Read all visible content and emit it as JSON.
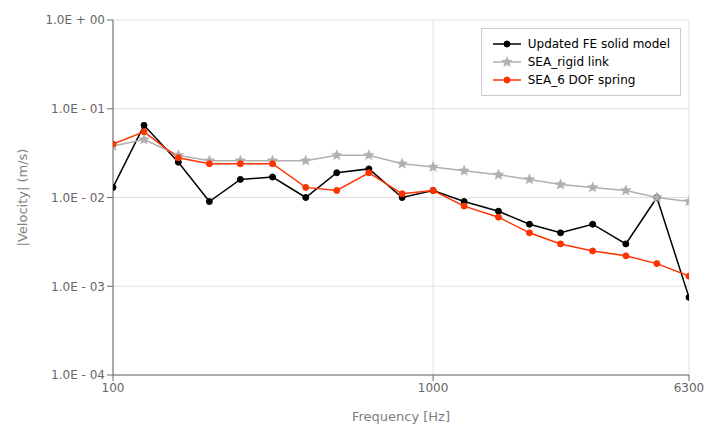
{
  "chart_data": {
    "type": "line",
    "xlabel": "Frequency [Hz]",
    "ylabel": "|Velocity| (m/s)",
    "log": true,
    "grid": true,
    "legend": "upper right",
    "xlim": [
      100,
      6300
    ],
    "ylim": [
      0.0001,
      1
    ],
    "xticks": [
      100,
      1000,
      6300
    ],
    "yticks": [
      {
        "value": 0.0001,
        "label": "1.0E - 04"
      },
      {
        "value": 0.001,
        "label": "1.0E - 03"
      },
      {
        "value": 0.01,
        "label": "1.0E - 02"
      },
      {
        "value": 0.1,
        "label": "1.0E - 01"
      },
      {
        "value": 1,
        "label": "1.0E + 00"
      }
    ],
    "x": [
      100,
      125,
      160,
      200,
      250,
      315,
      400,
      500,
      630,
      800,
      1000,
      1250,
      1600,
      2000,
      2500,
      3150,
      4000,
      5000,
      6300
    ],
    "series": [
      {
        "name": "Updated FE solid model",
        "color": "#000000",
        "marker": "circle",
        "values": [
          0.013,
          0.065,
          0.025,
          0.009,
          0.016,
          0.017,
          0.01,
          0.019,
          0.021,
          0.01,
          0.012,
          0.009,
          0.007,
          0.005,
          0.004,
          0.005,
          0.003,
          0.01,
          0.00075
        ]
      },
      {
        "name": "SEA_rigid link",
        "color": "#b0b0b0",
        "marker": "star",
        "values": [
          0.038,
          0.045,
          0.03,
          0.026,
          0.026,
          0.026,
          0.026,
          0.03,
          0.03,
          0.024,
          0.022,
          0.02,
          0.018,
          0.016,
          0.014,
          0.013,
          0.012,
          0.01,
          0.009
        ]
      },
      {
        "name": "SEA_6 DOF spring",
        "color": "#ff3300",
        "marker": "circle",
        "values": [
          0.04,
          0.055,
          0.028,
          0.024,
          0.024,
          0.024,
          0.013,
          0.012,
          0.019,
          0.011,
          0.012,
          0.008,
          0.006,
          0.004,
          0.003,
          0.0025,
          0.0022,
          0.0018,
          0.0013
        ]
      }
    ]
  }
}
